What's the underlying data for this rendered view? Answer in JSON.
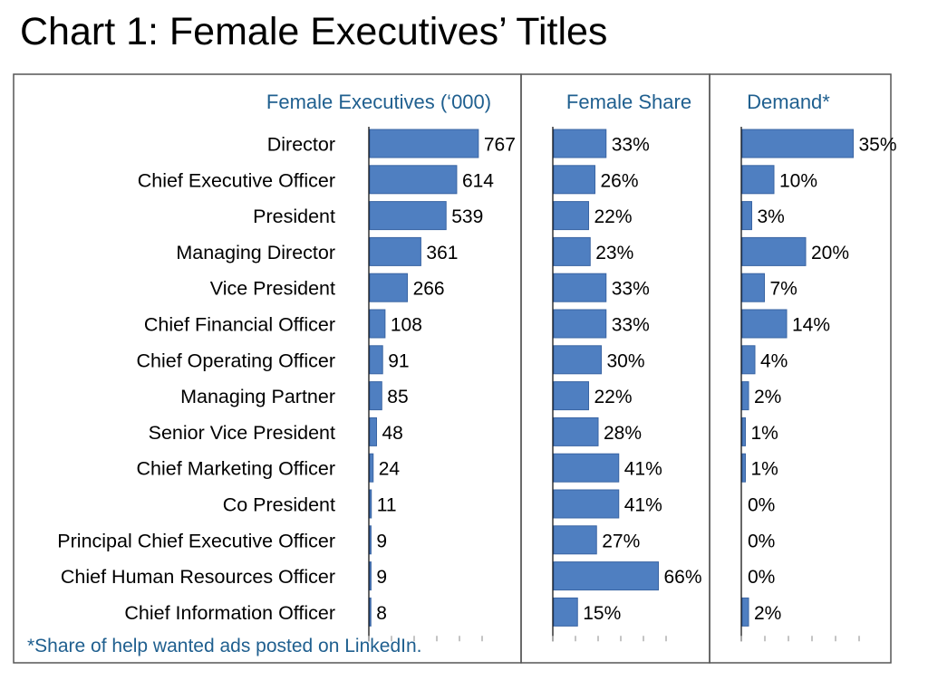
{
  "title": "Chart 1: Female Executives’ Titles",
  "footnote": "*Share of help wanted ads posted on LinkedIn.",
  "colors": {
    "bar": "#4f7fc1",
    "bar_edge": "#3a65a3",
    "header_text": "#1f5f8f",
    "frame": "#555555"
  },
  "chart_data": [
    {
      "type": "bar",
      "orientation": "horizontal",
      "title": "Female Executives (‘000)",
      "categories": [
        "Director",
        "Chief Executive Officer",
        "President",
        "Managing Director",
        "Vice President",
        "Chief Financial Officer",
        "Chief Operating Officer",
        "Managing Partner",
        "Senior Vice President",
        "Chief Marketing Officer",
        "Co President",
        "Principal Chief Executive Officer",
        "Chief Human Resources Officer",
        "Chief Information Officer"
      ],
      "values": [
        767,
        614,
        539,
        361,
        266,
        108,
        91,
        85,
        48,
        24,
        11,
        9,
        9,
        8
      ],
      "labels": [
        "767",
        "614",
        "539",
        "361",
        "266",
        "108",
        "91",
        "85",
        "48",
        "24",
        "11",
        "9",
        "9",
        "8"
      ],
      "xlim": [
        0,
        800
      ]
    },
    {
      "type": "bar",
      "orientation": "horizontal",
      "title": "Female Share",
      "categories": [
        "Director",
        "Chief Executive Officer",
        "President",
        "Managing Director",
        "Vice President",
        "Chief Financial Officer",
        "Chief Operating Officer",
        "Managing Partner",
        "Senior Vice President",
        "Chief Marketing Officer",
        "Co President",
        "Principal Chief Executive Officer",
        "Chief Human Resources Officer",
        "Chief Information Officer"
      ],
      "values": [
        33,
        26,
        22,
        23,
        33,
        33,
        30,
        22,
        28,
        41,
        41,
        27,
        66,
        15
      ],
      "labels": [
        "33%",
        "26%",
        "22%",
        "23%",
        "33%",
        "33%",
        "30%",
        "22%",
        "28%",
        "41%",
        "41%",
        "27%",
        "66%",
        "15%"
      ],
      "xlim": [
        0,
        80
      ]
    },
    {
      "type": "bar",
      "orientation": "horizontal",
      "title": "Demand*",
      "categories": [
        "Director",
        "Chief Executive Officer",
        "President",
        "Managing Director",
        "Vice President",
        "Chief Financial Officer",
        "Chief Operating Officer",
        "Managing Partner",
        "Senior Vice President",
        "Chief Marketing Officer",
        "Co President",
        "Principal Chief Executive Officer",
        "Chief Human Resources Officer",
        "Chief Information Officer"
      ],
      "values": [
        35,
        10,
        3,
        20,
        7,
        14,
        4,
        2,
        1,
        1,
        0,
        0,
        0,
        2
      ],
      "labels": [
        "35%",
        "10%",
        "3%",
        "20%",
        "7%",
        "14%",
        "4%",
        "2%",
        "1%",
        "1%",
        "0%",
        "0%",
        "0%",
        "2%"
      ],
      "xlim": [
        0,
        40
      ]
    }
  ]
}
